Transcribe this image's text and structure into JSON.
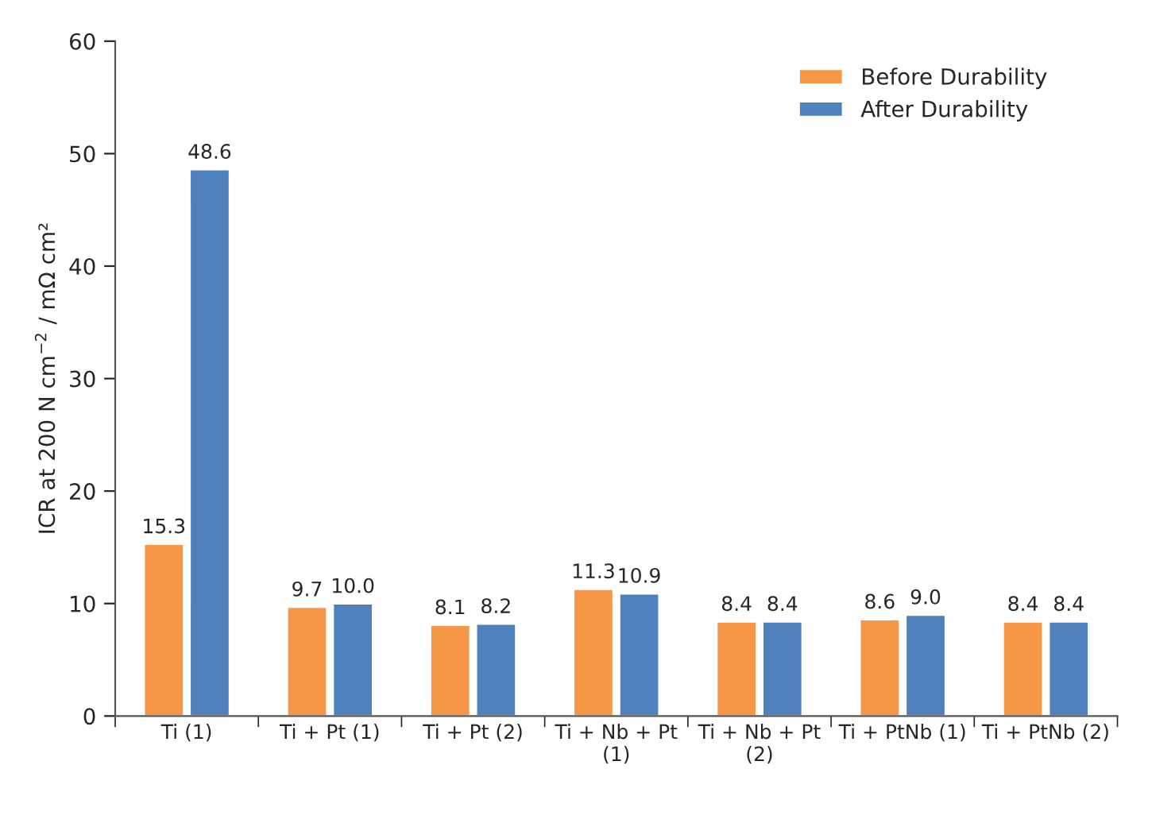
{
  "chart_data": {
    "type": "bar",
    "ylabel": "ICR at 200 N cm$^{−2}$ / mΩ cm²",
    "categories": [
      "Ti (1)",
      "Ti + Pt (1)",
      "Ti + Pt (2)",
      "Ti + Nb + Pt (1)",
      "Ti + Nb + Pt (2)",
      "Ti + PtNb (1)",
      "Ti + PtNb (2)"
    ],
    "series": [
      {
        "name": "Before Durability",
        "color": "#f79646",
        "values": [
          15.3,
          9.7,
          8.1,
          11.3,
          8.4,
          8.6,
          8.4
        ],
        "value_labels": [
          "15.3",
          "9.7",
          "8.1",
          "11.3",
          "8.4",
          "8.6",
          "8.4"
        ]
      },
      {
        "name": "After Durability",
        "color": "#4f81bd",
        "values": [
          48.6,
          10.0,
          8.2,
          10.9,
          8.4,
          9.0,
          8.4
        ],
        "value_labels": [
          "48.6",
          "10.0",
          "8.2",
          "10.9",
          "8.4",
          "9.0",
          "8.4"
        ]
      }
    ],
    "ylim": [
      0,
      60
    ],
    "yticks": [
      0,
      10,
      20,
      30,
      40,
      50,
      60
    ],
    "legend": "top right",
    "grid": false
  }
}
